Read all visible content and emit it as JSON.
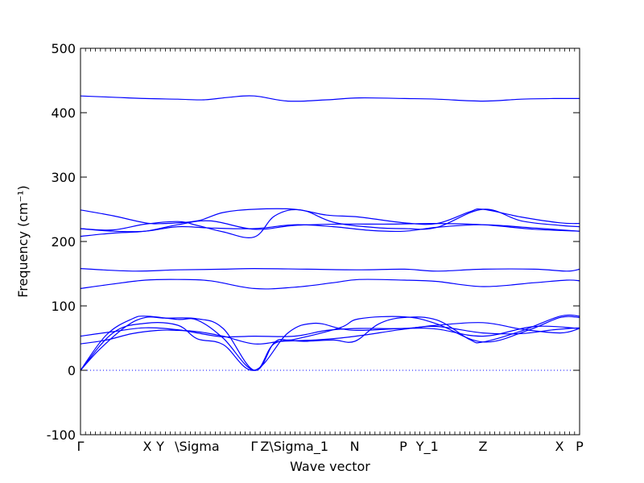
{
  "chart_data": {
    "type": "line",
    "title": "",
    "xlabel": "Wave vector",
    "ylabel": "Frequency (cm⁻¹)",
    "ylim": [
      -100,
      500
    ],
    "yticks": [
      -100,
      0,
      100,
      200,
      300,
      400,
      500
    ],
    "xlim": [
      0,
      7.7
    ],
    "xticks": [
      {
        "label": "Γ",
        "x": 0.0
      },
      {
        "label": "X",
        "x": 1.03
      },
      {
        "label": "Y",
        "x": 1.23
      },
      {
        "label": "\\Sigma",
        "x": 1.8
      },
      {
        "label": "Γ",
        "x": 2.68
      },
      {
        "label": "Z\\Sigma_1",
        "x": 3.3
      },
      {
        "label": "N",
        "x": 4.23
      },
      {
        "label": "P",
        "x": 4.98
      },
      {
        "label": "Y_1",
        "x": 5.35
      },
      {
        "label": "Z",
        "x": 6.21
      },
      {
        "label": "X",
        "x": 7.39
      },
      {
        "label": "P",
        "x": 7.7
      }
    ],
    "zero_line": 0,
    "series_color": "#0000ff",
    "series": [
      {
        "x": [
          0,
          0.5,
          1.0,
          1.5,
          1.9,
          2.3,
          2.68,
          3.2,
          3.8,
          4.3,
          5.0,
          5.5,
          6.21,
          6.8,
          7.3,
          7.7
        ],
        "values": [
          426,
          424,
          422,
          421,
          420,
          424,
          426,
          418,
          420,
          423,
          422,
          421,
          418,
          421,
          422,
          422
        ]
      },
      {
        "x": [
          0,
          0.5,
          1.0,
          1.3,
          1.8,
          2.2,
          2.68,
          3.3,
          3.8,
          4.3,
          5.0,
          5.5,
          6.0,
          6.21,
          6.8,
          7.4,
          7.7
        ],
        "values": [
          249,
          240,
          229,
          228,
          232,
          245,
          250,
          250,
          241,
          238,
          229,
          228,
          246,
          250,
          238,
          229,
          228
        ]
      },
      {
        "x": [
          0,
          0.5,
          1.0,
          1.5,
          1.8,
          2.2,
          2.68,
          3.0,
          3.4,
          3.9,
          4.5,
          5.0,
          5.5,
          6.21,
          6.8,
          7.4,
          7.7
        ],
        "values": [
          220,
          218,
          227,
          231,
          225,
          215,
          207,
          240,
          249,
          230,
          222,
          220,
          222,
          250,
          232,
          225,
          223
        ]
      },
      {
        "x": [
          0,
          0.5,
          1.0,
          1.5,
          2.0,
          2.68,
          3.3,
          4.0,
          4.8,
          5.5,
          6.21,
          7.0,
          7.7
        ],
        "values": [
          208,
          213,
          216,
          226,
          232,
          219,
          225,
          227,
          227,
          228,
          226,
          219,
          216
        ]
      },
      {
        "x": [
          0,
          0.5,
          1.0,
          1.5,
          2.0,
          2.68,
          3.3,
          3.9,
          4.5,
          5.0,
          5.5,
          6.21,
          7.0,
          7.7
        ],
        "values": [
          220,
          216,
          216,
          223,
          221,
          220,
          226,
          223,
          217,
          216,
          222,
          226,
          221,
          216
        ]
      },
      {
        "x": [
          0,
          0.8,
          1.5,
          2.2,
          2.68,
          3.5,
          4.3,
          5.0,
          5.5,
          6.21,
          7.0,
          7.5,
          7.7
        ],
        "values": [
          158,
          154,
          156,
          157,
          158,
          157,
          156,
          157,
          154,
          157,
          157,
          154,
          157
        ]
      },
      {
        "x": [
          0,
          0.5,
          1.0,
          1.5,
          2.0,
          2.68,
          3.3,
          3.9,
          4.3,
          5.0,
          5.5,
          6.21,
          7.0,
          7.5,
          7.7
        ],
        "values": [
          127,
          134,
          140,
          141,
          139,
          127,
          129,
          136,
          141,
          140,
          138,
          130,
          136,
          140,
          139
        ]
      },
      {
        "x": [
          0,
          0.5,
          1.0,
          1.5,
          1.8,
          2.2,
          2.68,
          3.3,
          3.8,
          4.3,
          5.0,
          5.5,
          6.21,
          6.8,
          7.4,
          7.7
        ],
        "values": [
          53,
          60,
          66,
          63,
          58,
          52,
          53,
          53,
          62,
          65,
          65,
          70,
          74,
          64,
          58,
          65
        ]
      },
      {
        "x": [
          0,
          0.4,
          0.8,
          1.2,
          1.5,
          1.8,
          2.2,
          2.68,
          3.1,
          3.6,
          4.0,
          4.4,
          5.0,
          5.5,
          6.21,
          6.8,
          7.3,
          7.7
        ],
        "values": [
          41,
          47,
          57,
          62,
          62,
          60,
          53,
          41,
          45,
          47,
          50,
          55,
          64,
          68,
          58,
          57,
          63,
          66
        ]
      },
      {
        "x": [
          0,
          0.3,
          0.7,
          1.0,
          1.3,
          1.8,
          2.2,
          2.68,
          3.0,
          3.3,
          4.0,
          4.3,
          5.0,
          5.5,
          6.21,
          6.9,
          7.4,
          7.7
        ],
        "values": [
          0,
          33,
          68,
          82,
          81,
          80,
          65,
          0,
          44,
          48,
          66,
          80,
          83,
          72,
          44,
          62,
          82,
          82
        ]
      },
      {
        "x": [
          0,
          0.4,
          0.8,
          1.03,
          1.5,
          1.8,
          2.2,
          2.68,
          3.0,
          3.5,
          3.9,
          4.23,
          4.6,
          5.0,
          5.5,
          6.0,
          6.21,
          6.8,
          7.4,
          7.7
        ],
        "values": [
          0,
          55,
          80,
          84,
          79,
          78,
          50,
          0,
          42,
          45,
          47,
          45,
          72,
          82,
          78,
          48,
          44,
          61,
          84,
          84
        ]
      },
      {
        "x": [
          0,
          0.5,
          1.0,
          1.5,
          1.8,
          2.2,
          2.68,
          3.2,
          3.6,
          4.0,
          4.3,
          5.0,
          5.5,
          6.21,
          7.0,
          7.7
        ],
        "values": [
          0,
          58,
          73,
          70,
          49,
          40,
          0,
          58,
          73,
          65,
          62,
          65,
          64,
          53,
          68,
          65
        ]
      }
    ]
  }
}
